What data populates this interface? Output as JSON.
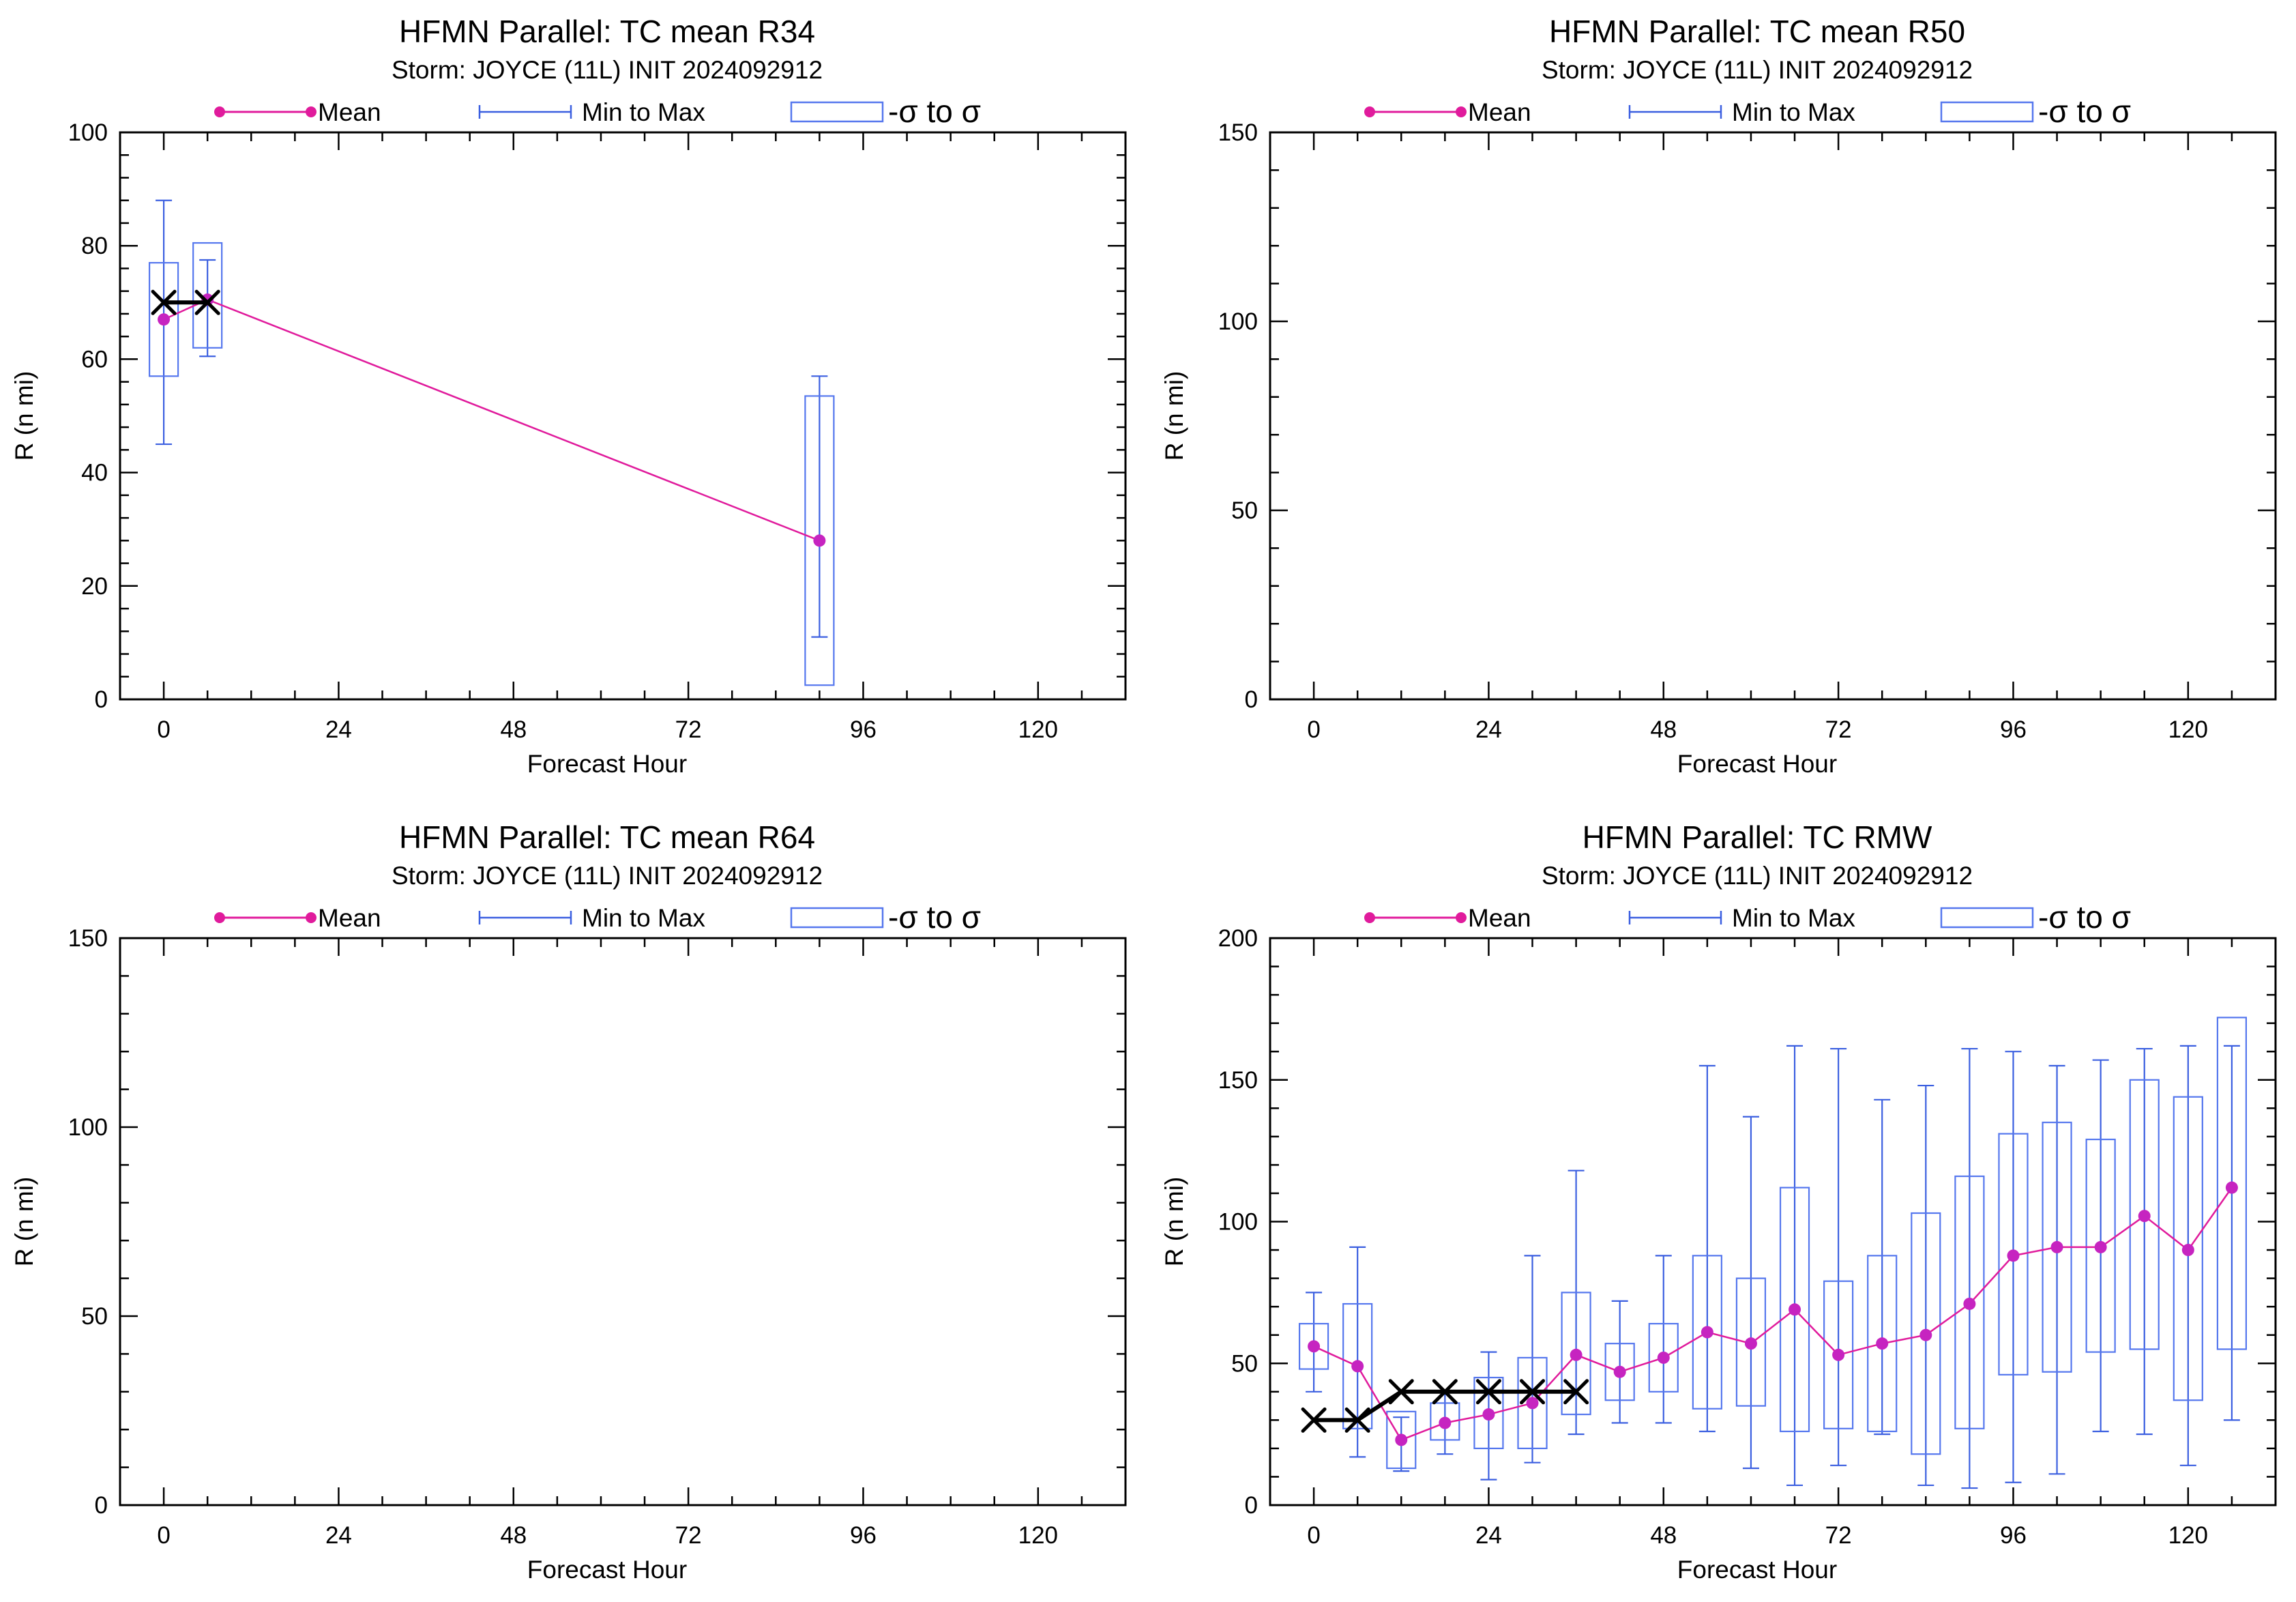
{
  "colors": {
    "mean": "#e01b9c",
    "mean_marker": "#c624c0",
    "range": "#3b5fe0",
    "box": "#5577ee",
    "observed": "#000000",
    "axes": "#000000",
    "background": "#ffffff"
  },
  "chart_data": [
    {
      "type": "box",
      "title": "HFMN Parallel: TC mean R34",
      "subtitle": "Storm: JOYCE (11L) INIT 2024092912",
      "legend": {
        "mean": "Mean",
        "range": "Min to Max",
        "sigma": "-σ to σ"
      },
      "xlabel": "Forecast Hour",
      "ylabel": "R (n mi)",
      "xlim": [
        -6,
        132
      ],
      "ylim": [
        0,
        100
      ],
      "xticks": [
        0,
        24,
        48,
        72,
        96,
        120
      ],
      "yticks": [
        0,
        20,
        40,
        60,
        80,
        100
      ],
      "mean": {
        "x": [
          0,
          6,
          90
        ],
        "y": [
          67,
          70.5,
          28
        ]
      },
      "min_to_max": [
        {
          "x": 0,
          "min": 45,
          "max": 88
        },
        {
          "x": 6,
          "min": 60.5,
          "max": 77.5
        },
        {
          "x": 90,
          "min": 11,
          "max": 57
        }
      ],
      "sigma_box": [
        {
          "x": 0,
          "low": 57,
          "high": 77
        },
        {
          "x": 6,
          "low": 62,
          "high": 80.5
        },
        {
          "x": 90,
          "low": 2.5,
          "high": 53.5
        }
      ],
      "observed": {
        "x": [
          0,
          6
        ],
        "y": [
          70,
          70
        ]
      }
    },
    {
      "type": "box",
      "title": "HFMN Parallel: TC mean R50",
      "subtitle": "Storm: JOYCE (11L) INIT 2024092912",
      "legend": {
        "mean": "Mean",
        "range": "Min to Max",
        "sigma": "-σ to σ"
      },
      "xlabel": "Forecast Hour",
      "ylabel": "R (n mi)",
      "xlim": [
        -6,
        132
      ],
      "ylim": [
        0,
        150
      ],
      "xticks": [
        0,
        24,
        48,
        72,
        96,
        120
      ],
      "yticks": [
        0,
        50,
        100,
        150
      ],
      "mean": {
        "x": [],
        "y": []
      },
      "min_to_max": [],
      "sigma_box": [],
      "observed": {
        "x": [],
        "y": []
      }
    },
    {
      "type": "box",
      "title": "HFMN Parallel: TC mean R64",
      "subtitle": "Storm: JOYCE (11L) INIT 2024092912",
      "legend": {
        "mean": "Mean",
        "range": "Min to Max",
        "sigma": "-σ to σ"
      },
      "xlabel": "Forecast Hour",
      "ylabel": "R (n mi)",
      "xlim": [
        -6,
        132
      ],
      "ylim": [
        0,
        150
      ],
      "xticks": [
        0,
        24,
        48,
        72,
        96,
        120
      ],
      "yticks": [
        0,
        50,
        100,
        150
      ],
      "mean": {
        "x": [],
        "y": []
      },
      "min_to_max": [],
      "sigma_box": [],
      "observed": {
        "x": [],
        "y": []
      }
    },
    {
      "type": "box",
      "title": "HFMN Parallel: TC RMW",
      "subtitle": "Storm: JOYCE (11L) INIT 2024092912",
      "legend": {
        "mean": "Mean",
        "range": "Min to Max",
        "sigma": "-σ to σ"
      },
      "xlabel": "Forecast Hour",
      "ylabel": "R (n mi)",
      "xlim": [
        -6,
        132
      ],
      "ylim": [
        0,
        200
      ],
      "xticks": [
        0,
        24,
        48,
        72,
        96,
        120
      ],
      "yticks": [
        0,
        50,
        100,
        150,
        200
      ],
      "mean": {
        "x": [
          0,
          6,
          12,
          18,
          24,
          30,
          36,
          42,
          48,
          54,
          60,
          66,
          72,
          78,
          84,
          90,
          96,
          102,
          108,
          114,
          120,
          126
        ],
        "y": [
          56,
          49,
          23,
          29,
          32,
          36,
          53,
          47,
          52,
          61,
          57,
          69,
          53,
          57,
          60,
          71,
          88,
          91,
          91,
          102,
          90,
          112
        ]
      },
      "min_to_max": [
        {
          "x": 0,
          "min": 40,
          "max": 75
        },
        {
          "x": 6,
          "min": 17,
          "max": 91
        },
        {
          "x": 12,
          "min": 12,
          "max": 31
        },
        {
          "x": 18,
          "min": 18,
          "max": 40
        },
        {
          "x": 24,
          "min": 9,
          "max": 54
        },
        {
          "x": 30,
          "min": 15,
          "max": 88
        },
        {
          "x": 36,
          "min": 25,
          "max": 118
        },
        {
          "x": 42,
          "min": 29,
          "max": 72
        },
        {
          "x": 48,
          "min": 29,
          "max": 88
        },
        {
          "x": 54,
          "min": 26,
          "max": 155
        },
        {
          "x": 60,
          "min": 13,
          "max": 137
        },
        {
          "x": 66,
          "min": 7,
          "max": 162
        },
        {
          "x": 72,
          "min": 14,
          "max": 161
        },
        {
          "x": 78,
          "min": 25,
          "max": 143
        },
        {
          "x": 84,
          "min": 7,
          "max": 148
        },
        {
          "x": 90,
          "min": 6,
          "max": 161
        },
        {
          "x": 96,
          "min": 8,
          "max": 160
        },
        {
          "x": 102,
          "min": 11,
          "max": 155
        },
        {
          "x": 108,
          "min": 26,
          "max": 157
        },
        {
          "x": 114,
          "min": 25,
          "max": 161
        },
        {
          "x": 120,
          "min": 14,
          "max": 162
        },
        {
          "x": 126,
          "min": 30,
          "max": 162
        }
      ],
      "sigma_box": [
        {
          "x": 0,
          "low": 48,
          "high": 64
        },
        {
          "x": 6,
          "low": 27,
          "high": 71
        },
        {
          "x": 12,
          "low": 13,
          "high": 33
        },
        {
          "x": 18,
          "low": 23,
          "high": 36
        },
        {
          "x": 24,
          "low": 20,
          "high": 45
        },
        {
          "x": 30,
          "low": 20,
          "high": 52
        },
        {
          "x": 36,
          "low": 32,
          "high": 75
        },
        {
          "x": 42,
          "low": 37,
          "high": 57
        },
        {
          "x": 48,
          "low": 40,
          "high": 64
        },
        {
          "x": 54,
          "low": 34,
          "high": 88
        },
        {
          "x": 60,
          "low": 35,
          "high": 80
        },
        {
          "x": 66,
          "low": 26,
          "high": 112
        },
        {
          "x": 72,
          "low": 27,
          "high": 79
        },
        {
          "x": 78,
          "low": 26,
          "high": 88
        },
        {
          "x": 84,
          "low": 18,
          "high": 103
        },
        {
          "x": 90,
          "low": 27,
          "high": 116
        },
        {
          "x": 96,
          "low": 46,
          "high": 131
        },
        {
          "x": 102,
          "low": 47,
          "high": 135
        },
        {
          "x": 108,
          "low": 54,
          "high": 129
        },
        {
          "x": 114,
          "low": 55,
          "high": 150
        },
        {
          "x": 120,
          "low": 37,
          "high": 144
        },
        {
          "x": 126,
          "low": 55,
          "high": 172
        }
      ],
      "observed": {
        "x": [
          0,
          6,
          12,
          18,
          24,
          30,
          36
        ],
        "y": [
          30,
          30,
          40,
          40,
          40,
          40,
          40
        ]
      }
    }
  ]
}
